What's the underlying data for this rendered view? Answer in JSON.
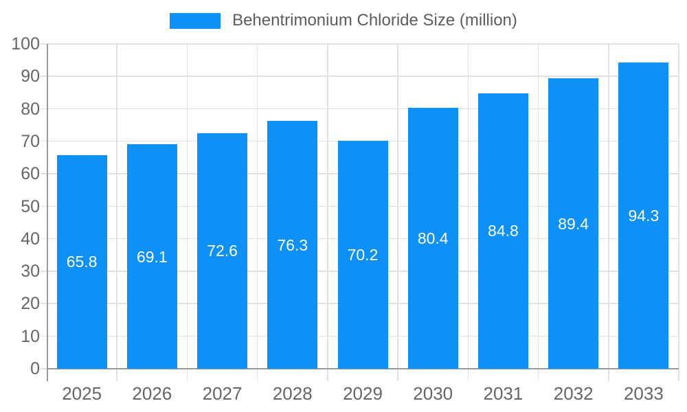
{
  "legend": {
    "label": "Behentrimonium Chloride Size (million)"
  },
  "colors": {
    "bar": "#0d90f8",
    "grid": "#e1e1e1",
    "axis": "#999999",
    "tick_text": "#636569",
    "legend_text": "#5a5c60",
    "value_text": "#ffffff",
    "background": "#ffffff"
  },
  "chart_data": {
    "type": "bar",
    "title": "",
    "categories": [
      "2025",
      "2026",
      "2027",
      "2028",
      "2029",
      "2030",
      "2031",
      "2032",
      "2033"
    ],
    "series": [
      {
        "name": "Behentrimonium Chloride Size (million)",
        "values": [
          65.8,
          69.1,
          72.6,
          76.3,
          70.2,
          80.4,
          84.8,
          89.4,
          94.3
        ]
      }
    ],
    "xlabel": "",
    "ylabel": "",
    "ylim": [
      0,
      100
    ],
    "ytick_step": 10,
    "yticks": [
      0,
      10,
      20,
      30,
      40,
      50,
      60,
      70,
      80,
      90,
      100
    ],
    "grid": true,
    "legend_position": "top",
    "value_label_position": "inside-center"
  }
}
